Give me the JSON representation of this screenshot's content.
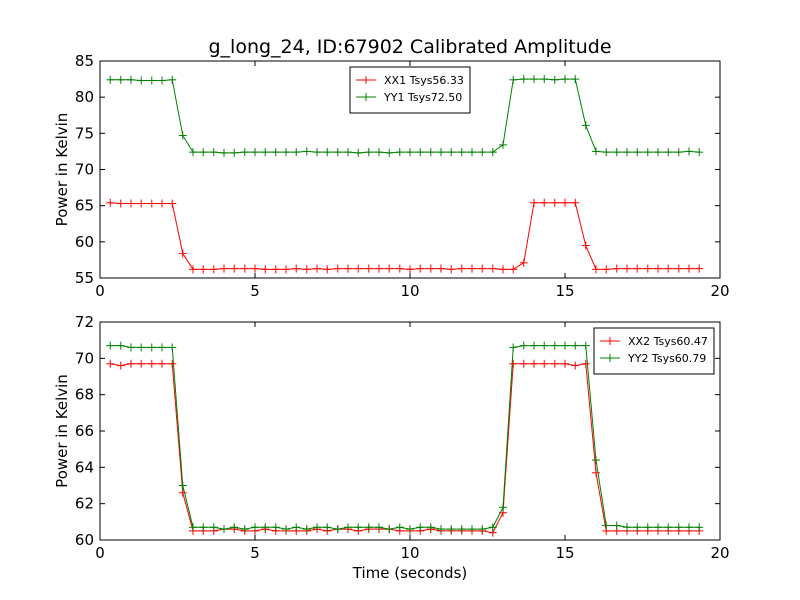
{
  "title": "g_long_24, ID:67902 Calibrated Amplitude",
  "chart_data": [
    {
      "type": "line",
      "ylabel": "Power in Kelvin",
      "xlabel": "",
      "xlim": [
        0,
        20
      ],
      "ylim": [
        55,
        85
      ],
      "xticks": [
        "0",
        "5",
        "10",
        "15",
        "20"
      ],
      "yticks": [
        "55",
        "60",
        "65",
        "70",
        "75",
        "80",
        "85"
      ],
      "grid": false,
      "legend_position": "top-center",
      "x": [
        0.33,
        0.67,
        1.0,
        1.33,
        1.67,
        2.0,
        2.33,
        2.67,
        3.0,
        3.33,
        3.67,
        4.0,
        4.33,
        4.67,
        5.0,
        5.33,
        5.67,
        6.0,
        6.33,
        6.67,
        7.0,
        7.33,
        7.67,
        8.0,
        8.33,
        8.67,
        9.0,
        9.33,
        9.67,
        10.0,
        10.33,
        10.67,
        11.0,
        11.33,
        11.67,
        12.0,
        12.33,
        12.67,
        13.0,
        13.33,
        13.67,
        14.0,
        14.33,
        14.67,
        15.0,
        15.33,
        15.67,
        16.0,
        16.33,
        16.67,
        17.0,
        17.33,
        17.67,
        18.0,
        18.33,
        18.67,
        19.0,
        19.33
      ],
      "series": [
        {
          "name": "XX1 Tsys56.33",
          "color": "#ff0000",
          "values": [
            65.4,
            65.3,
            65.3,
            65.3,
            65.3,
            65.3,
            65.3,
            58.4,
            56.2,
            56.2,
            56.2,
            56.3,
            56.3,
            56.3,
            56.3,
            56.2,
            56.2,
            56.2,
            56.3,
            56.2,
            56.3,
            56.2,
            56.3,
            56.3,
            56.3,
            56.3,
            56.3,
            56.3,
            56.3,
            56.2,
            56.3,
            56.3,
            56.3,
            56.2,
            56.3,
            56.3,
            56.3,
            56.3,
            56.2,
            56.2,
            57.1,
            65.4,
            65.4,
            65.4,
            65.4,
            65.4,
            59.5,
            56.2,
            56.2,
            56.3,
            56.3,
            56.3,
            56.3,
            56.3,
            56.3,
            56.3,
            56.3,
            56.3
          ]
        },
        {
          "name": "YY1 Tsys72.50",
          "color": "#008000",
          "values": [
            82.4,
            82.4,
            82.4,
            82.3,
            82.3,
            82.3,
            82.4,
            74.7,
            72.4,
            72.4,
            72.4,
            72.3,
            72.3,
            72.4,
            72.4,
            72.4,
            72.4,
            72.4,
            72.4,
            72.5,
            72.4,
            72.4,
            72.4,
            72.4,
            72.3,
            72.4,
            72.4,
            72.3,
            72.4,
            72.4,
            72.4,
            72.4,
            72.4,
            72.4,
            72.4,
            72.4,
            72.4,
            72.4,
            73.4,
            82.4,
            82.5,
            82.5,
            82.5,
            82.4,
            82.5,
            82.5,
            76.1,
            72.5,
            72.4,
            72.4,
            72.4,
            72.4,
            72.4,
            72.4,
            72.4,
            72.4,
            72.5,
            72.4
          ]
        }
      ]
    },
    {
      "type": "line",
      "ylabel": "Power in Kelvin",
      "xlabel": "Time (seconds)",
      "xlim": [
        0,
        20
      ],
      "ylim": [
        60,
        72
      ],
      "xticks": [
        "0",
        "5",
        "10",
        "15",
        "20"
      ],
      "yticks": [
        "60",
        "62",
        "64",
        "66",
        "68",
        "70",
        "72"
      ],
      "grid": false,
      "legend_position": "top-right",
      "x": [
        0.33,
        0.67,
        1.0,
        1.33,
        1.67,
        2.0,
        2.33,
        2.67,
        3.0,
        3.33,
        3.67,
        4.0,
        4.33,
        4.67,
        5.0,
        5.33,
        5.67,
        6.0,
        6.33,
        6.67,
        7.0,
        7.33,
        7.67,
        8.0,
        8.33,
        8.67,
        9.0,
        9.33,
        9.67,
        10.0,
        10.33,
        10.67,
        11.0,
        11.33,
        11.67,
        12.0,
        12.33,
        12.67,
        13.0,
        13.33,
        13.67,
        14.0,
        14.33,
        14.67,
        15.0,
        15.33,
        15.67,
        16.0,
        16.33,
        16.67,
        17.0,
        17.33,
        17.67,
        18.0,
        18.33,
        18.67,
        19.0,
        19.33
      ],
      "series": [
        {
          "name": "XX2 Tsys60.47",
          "color": "#ff0000",
          "values": [
            69.7,
            69.6,
            69.7,
            69.7,
            69.7,
            69.7,
            69.7,
            62.6,
            60.5,
            60.5,
            60.5,
            60.6,
            60.6,
            60.5,
            60.5,
            60.6,
            60.5,
            60.5,
            60.5,
            60.5,
            60.6,
            60.5,
            60.6,
            60.6,
            60.5,
            60.6,
            60.6,
            60.6,
            60.5,
            60.5,
            60.5,
            60.6,
            60.5,
            60.5,
            60.5,
            60.5,
            60.5,
            60.4,
            61.5,
            69.7,
            69.7,
            69.7,
            69.7,
            69.7,
            69.7,
            69.6,
            69.7,
            63.7,
            60.5,
            60.5,
            60.5,
            60.5,
            60.5,
            60.5,
            60.5,
            60.5,
            60.5,
            60.5
          ]
        },
        {
          "name": "YY2 Tsys60.79",
          "color": "#008000",
          "values": [
            70.7,
            70.7,
            70.6,
            70.6,
            70.6,
            70.6,
            70.6,
            63.0,
            60.7,
            60.7,
            60.7,
            60.6,
            60.7,
            60.6,
            60.7,
            60.7,
            60.7,
            60.6,
            60.7,
            60.6,
            60.7,
            60.7,
            60.6,
            60.7,
            60.7,
            60.7,
            60.7,
            60.6,
            60.7,
            60.6,
            60.7,
            60.7,
            60.6,
            60.6,
            60.6,
            60.6,
            60.6,
            60.7,
            61.8,
            70.6,
            70.7,
            70.7,
            70.7,
            70.7,
            70.7,
            70.7,
            70.7,
            64.4,
            60.8,
            60.8,
            60.7,
            60.7,
            60.7,
            60.7,
            60.7,
            60.7,
            60.7,
            60.7
          ]
        }
      ]
    }
  ]
}
